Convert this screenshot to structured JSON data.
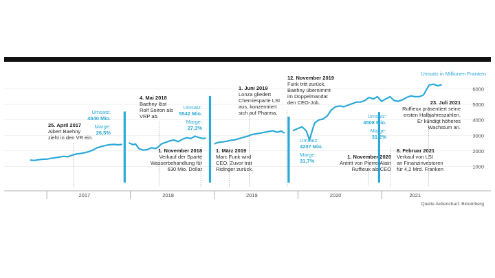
{
  "chart_data": {
    "type": "line",
    "title": "",
    "unit_label": "Umsatz in Millionen Franken",
    "source": "Quelle Aktienchart: Bloomberg",
    "ylim": [
      0,
      6500
    ],
    "yticks": [
      1000,
      2000,
      3000,
      4000,
      5000,
      6000
    ],
    "xlim": [
      2016.72,
      2021.78
    ],
    "year_labels": [
      {
        "label": "2017",
        "x": 2017.45
      },
      {
        "label": "2018",
        "x": 2018.45
      },
      {
        "label": "2019",
        "x": 2019.45
      },
      {
        "label": "2020",
        "x": 2020.45
      },
      {
        "label": "2021",
        "x": 2021.4
      }
    ],
    "year_boundaries": [
      2017.0,
      2018.0,
      2019.0,
      2020.0,
      2021.0
    ],
    "series": [
      {
        "name": "",
        "color": "#2aa8d8",
        "points": [
          [
            2016.73,
            1350
          ],
          [
            2016.8,
            1410
          ],
          [
            2016.85,
            1380
          ],
          [
            2016.9,
            1430
          ],
          [
            2016.95,
            1460
          ],
          [
            2017.0,
            1470
          ],
          [
            2017.05,
            1520
          ],
          [
            2017.1,
            1560
          ],
          [
            2017.15,
            1600
          ],
          [
            2017.2,
            1650
          ],
          [
            2017.25,
            1620
          ],
          [
            2017.3,
            1720
          ],
          [
            2017.35,
            1800
          ],
          [
            2017.4,
            1830
          ],
          [
            2017.45,
            1880
          ],
          [
            2017.5,
            1950
          ],
          [
            2017.55,
            2050
          ],
          [
            2017.6,
            2200
          ],
          [
            2017.65,
            2280
          ],
          [
            2017.7,
            2350
          ],
          [
            2017.75,
            2400
          ],
          [
            2017.8,
            2420
          ],
          [
            2017.85,
            2390
          ],
          [
            2017.9,
            2420
          ],
          [
            2017.98,
            2520
          ],
          [
            2018.03,
            2400
          ],
          [
            2018.06,
            2450
          ],
          [
            2018.1,
            2150
          ],
          [
            2018.15,
            2050
          ],
          [
            2018.2,
            2080
          ],
          [
            2018.25,
            2200
          ],
          [
            2018.3,
            2150
          ],
          [
            2018.33,
            2250
          ],
          [
            2018.37,
            2450
          ],
          [
            2018.42,
            2550
          ],
          [
            2018.47,
            2650
          ],
          [
            2018.52,
            2700
          ],
          [
            2018.57,
            2600
          ],
          [
            2018.62,
            2750
          ],
          [
            2018.67,
            2850
          ],
          [
            2018.72,
            2800
          ],
          [
            2018.77,
            2950
          ],
          [
            2018.82,
            2850
          ],
          [
            2018.87,
            2800
          ],
          [
            2018.9,
            2830
          ],
          [
            2019.0,
            2450
          ],
          [
            2019.05,
            2550
          ],
          [
            2019.1,
            2580
          ],
          [
            2019.15,
            2620
          ],
          [
            2019.2,
            2690
          ],
          [
            2019.25,
            2720
          ],
          [
            2019.3,
            2800
          ],
          [
            2019.35,
            2880
          ],
          [
            2019.4,
            2950
          ],
          [
            2019.45,
            3050
          ],
          [
            2019.5,
            3100
          ],
          [
            2019.55,
            3150
          ],
          [
            2019.6,
            3200
          ],
          [
            2019.65,
            3250
          ],
          [
            2019.7,
            3300
          ],
          [
            2019.75,
            3200
          ],
          [
            2019.8,
            3280
          ],
          [
            2019.84,
            3150
          ],
          [
            2019.94,
            3300
          ],
          [
            2020.0,
            3450
          ],
          [
            2020.05,
            3550
          ],
          [
            2020.1,
            3300
          ],
          [
            2020.14,
            2700
          ],
          [
            2020.17,
            3300
          ],
          [
            2020.2,
            3800
          ],
          [
            2020.25,
            4000
          ],
          [
            2020.3,
            4050
          ],
          [
            2020.35,
            4250
          ],
          [
            2020.4,
            4650
          ],
          [
            2020.45,
            4850
          ],
          [
            2020.5,
            4900
          ],
          [
            2020.55,
            4850
          ],
          [
            2020.6,
            4950
          ],
          [
            2020.65,
            5050
          ],
          [
            2020.7,
            5150
          ],
          [
            2020.75,
            5150
          ],
          [
            2020.8,
            5250
          ],
          [
            2020.85,
            5450
          ],
          [
            2020.9,
            5350
          ],
          [
            2020.95,
            5500
          ],
          [
            2021.0,
            5200
          ],
          [
            2021.05,
            5350
          ],
          [
            2021.1,
            5500
          ],
          [
            2021.15,
            5250
          ],
          [
            2021.2,
            5200
          ],
          [
            2021.25,
            5300
          ],
          [
            2021.3,
            5450
          ],
          [
            2021.35,
            5550
          ],
          [
            2021.4,
            5500
          ],
          [
            2021.45,
            5500
          ],
          [
            2021.5,
            5600
          ],
          [
            2021.53,
            5900
          ],
          [
            2021.57,
            6250
          ],
          [
            2021.62,
            6300
          ],
          [
            2021.67,
            6200
          ],
          [
            2021.72,
            6280
          ]
        ]
      }
    ],
    "revenue_bars": [
      {
        "x": 2017.93,
        "value": 4540,
        "label": "Umsatz: 4540 Mio.",
        "margin": "Marge: 26,5%"
      },
      {
        "x": 2018.95,
        "value": 5542,
        "label": "Umsatz: 5542 Mio.",
        "margin": "Marge: 27,3%"
      },
      {
        "x": 2019.89,
        "value": 4207,
        "label": "Umsatz: 4207 Mio.",
        "margin": "Marge: 31,7%"
      },
      {
        "x": 2020.97,
        "value": 4508,
        "label": "Umsatz: 4508 Mio.",
        "margin": "Marge: 31,2%"
      }
    ],
    "events": [
      {
        "x": 2017.32,
        "date": "25. April 2017",
        "text": [
          "Albert Baehny",
          "zieht in den VR ein."
        ]
      },
      {
        "x": 2018.34,
        "date": "4. Mai 2018",
        "text": [
          "Baehny löst",
          "Rolf Soiron als",
          "VRP ab."
        ]
      },
      {
        "x": 2018.84,
        "date": "1. November 2018",
        "text": [
          "Verkauf der Sparte",
          "Wasserbehandlung für",
          "630 Mio. Dollar"
        ]
      },
      {
        "x": 2019.18,
        "date": "1. März 2019",
        "text": [
          "Marc Funk wird",
          "CEO. Zuvor trat",
          "Ridinger zurück."
        ]
      },
      {
        "x": 2019.42,
        "date": "1. Juni 2019",
        "text": [
          "Lonza gliedert",
          "Chemiesparte LSI",
          "aus, konzentriert",
          "sich auf Pharma."
        ]
      },
      {
        "x": 2019.87,
        "date": "12. November 2019",
        "text": [
          "Funk tritt zurück,",
          "Baehny übernimmt",
          "im Doppelmandat",
          "den CEO-Job."
        ]
      },
      {
        "x": 2020.84,
        "date": "1. November 2020",
        "text": [
          "Antritt von Pierre-Alain",
          "Ruffieux als CEO"
        ]
      },
      {
        "x": 2021.11,
        "date": "8. Februar 2021",
        "text": [
          "Verkauf von LSI",
          "an Finanzinvestoren",
          "für 4,2 Mrd. Franken"
        ]
      },
      {
        "x": 2021.56,
        "date": "23. Juli 2021",
        "text": [
          "Ruffieux präsentiert seine",
          "ersten Halbjahreszahlen.",
          "Er kündigt höheres",
          "Wachstum an."
        ]
      }
    ]
  }
}
